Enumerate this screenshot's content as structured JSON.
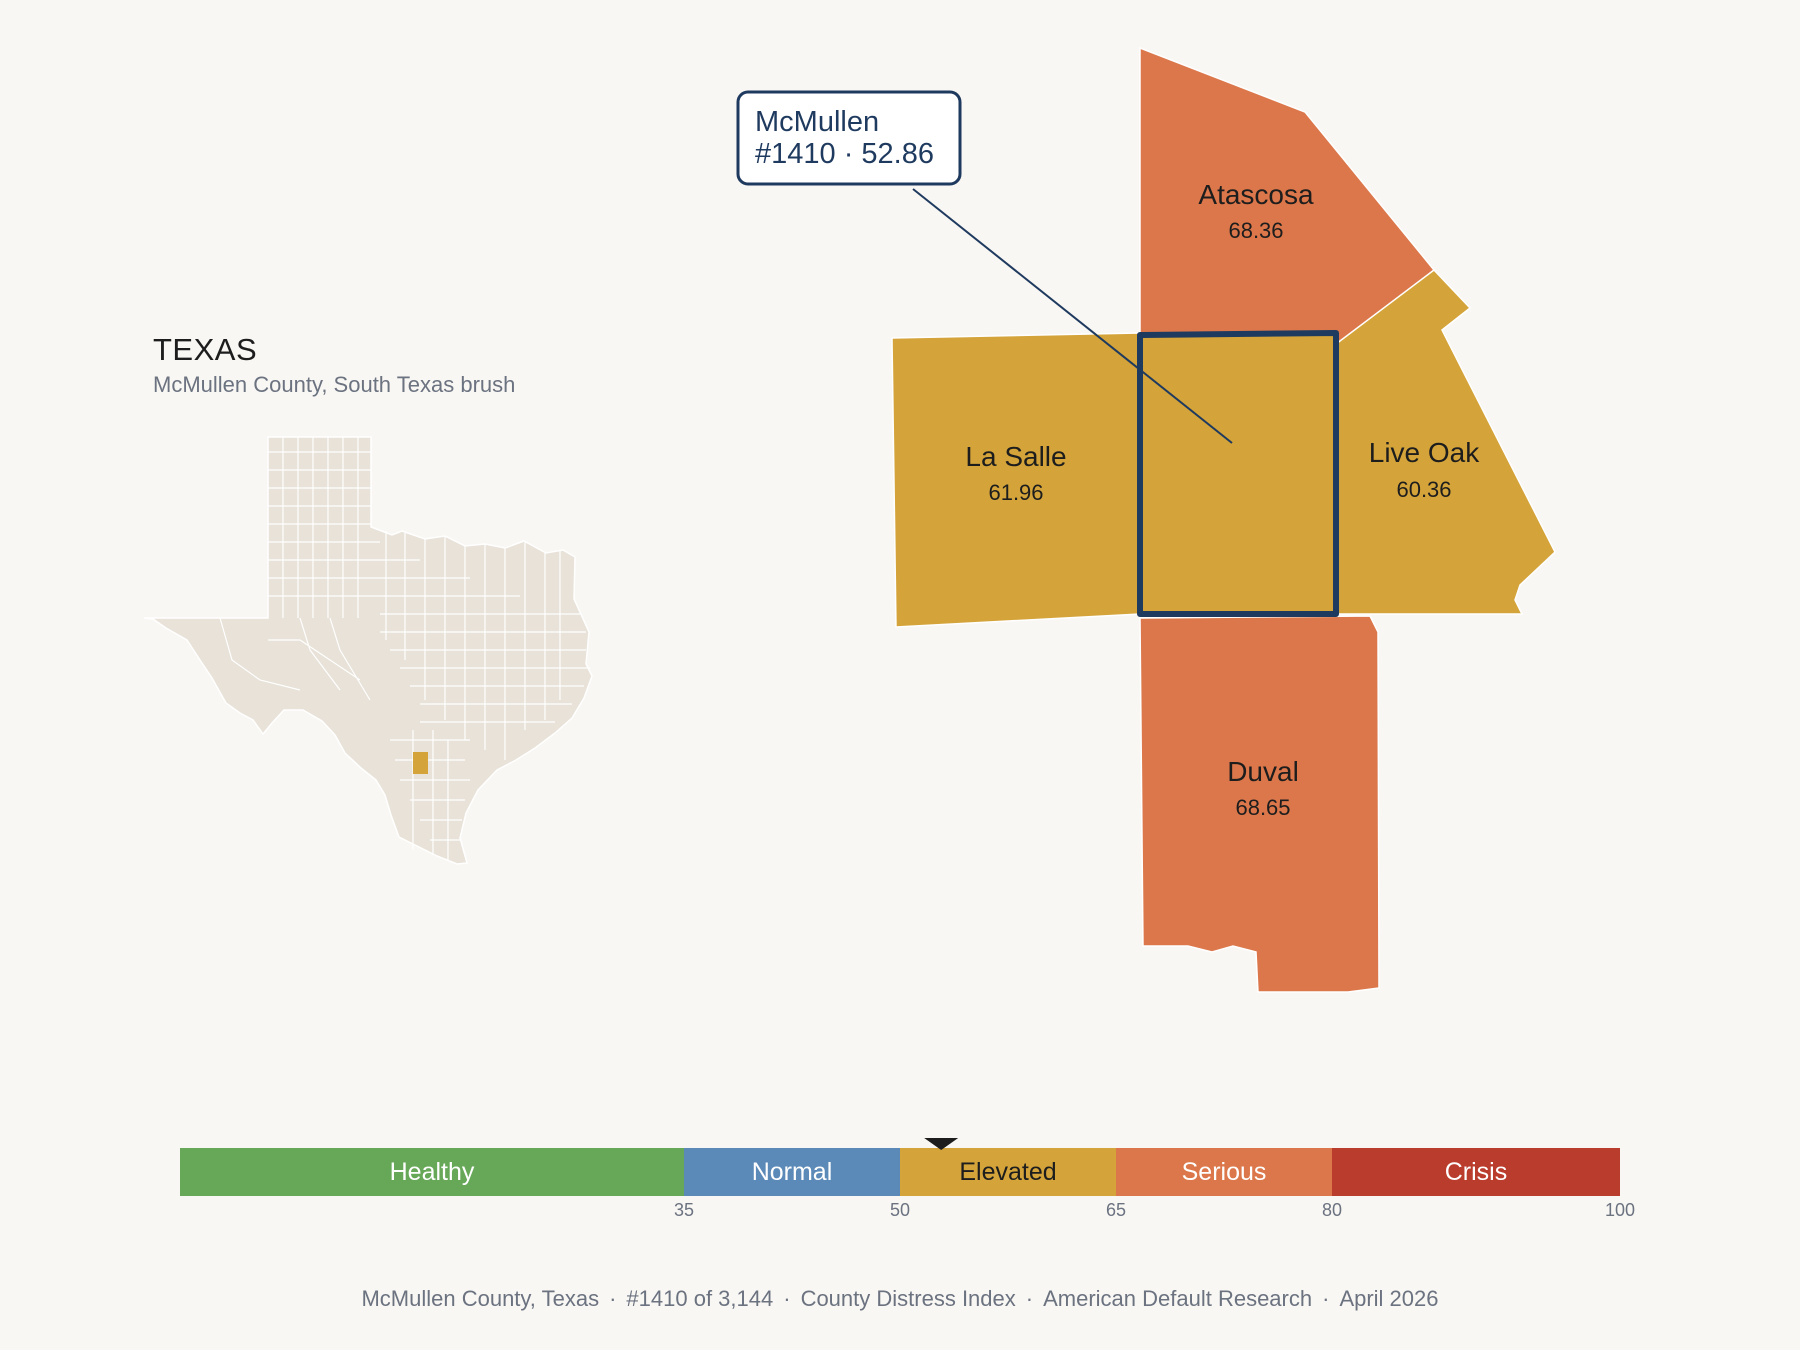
{
  "header": {
    "state": "TEXAS",
    "subtitle": "McMullen County, South Texas brush"
  },
  "callout": {
    "name": "McMullen",
    "rank_score": "#1410 · 52.86"
  },
  "colors": {
    "background": "#f9f7f3",
    "healthy": "#67a758",
    "normal": "#5b89b8",
    "elevated": "#d4a43a",
    "serious": "#db774a",
    "crisis": "#b93c2c",
    "state_fill": "#e8e2d8",
    "outline": "#1f3a5f"
  },
  "counties": [
    {
      "name": "Atascosa",
      "score": "68.36",
      "category": "serious"
    },
    {
      "name": "La Salle",
      "score": "61.96",
      "category": "elevated"
    },
    {
      "name": "McMullen",
      "score": "52.86",
      "category": "elevated",
      "selected": true
    },
    {
      "name": "Live Oak",
      "score": "60.36",
      "category": "elevated"
    },
    {
      "name": "Duval",
      "score": "68.65",
      "category": "serious"
    }
  ],
  "scale": {
    "bands": [
      {
        "label": "Healthy",
        "from": 0,
        "to": 35,
        "color": "#67a758"
      },
      {
        "label": "Normal",
        "from": 35,
        "to": 50,
        "color": "#5b89b8"
      },
      {
        "label": "Elevated",
        "from": 50,
        "to": 65,
        "color": "#d4a43a"
      },
      {
        "label": "Serious",
        "from": 65,
        "to": 80,
        "color": "#db774a"
      },
      {
        "label": "Crisis",
        "from": 80,
        "to": 100,
        "color": "#b93c2c"
      }
    ],
    "ticks": [
      "35",
      "50",
      "65",
      "80",
      "100"
    ],
    "marker_value": 52.86
  },
  "footer": {
    "county": "McMullen County, Texas",
    "rank": "#1410 of 3,144",
    "index": "County Distress Index",
    "source": "American Default Research",
    "date": "April 2026"
  }
}
